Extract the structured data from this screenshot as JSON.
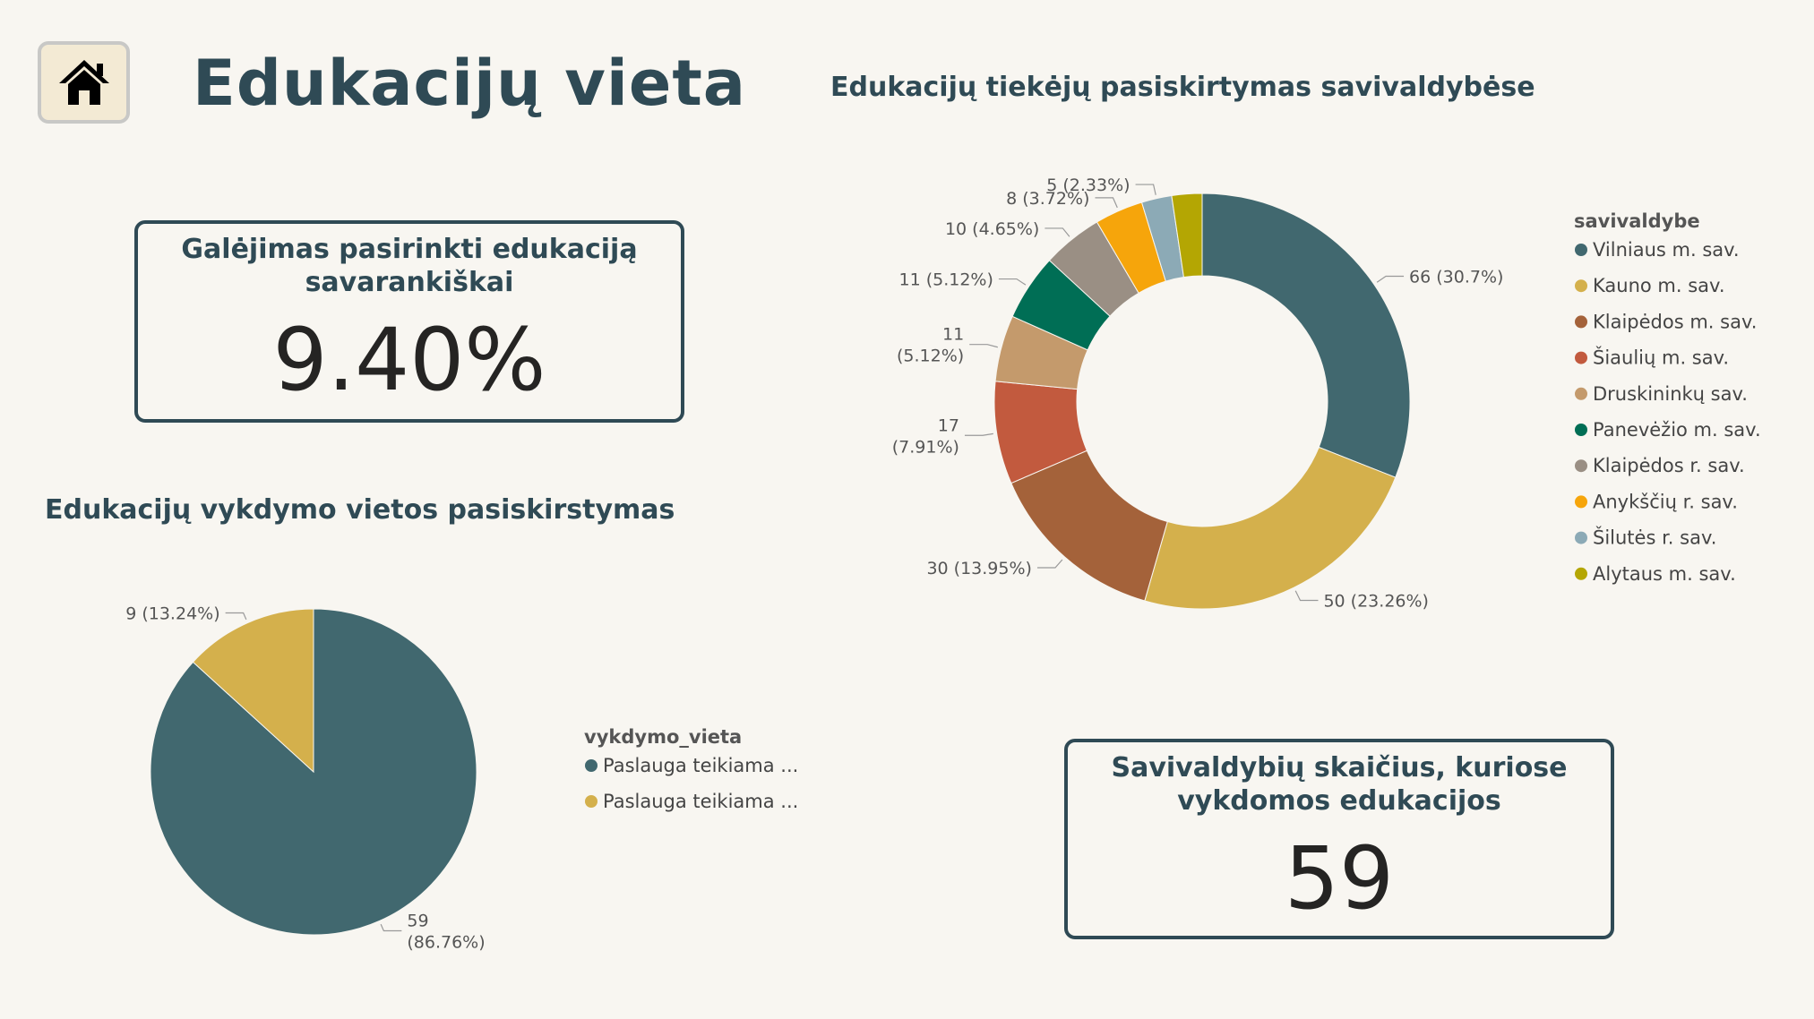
{
  "header": {
    "title": "Edukacijų vieta",
    "home_icon": "home-icon"
  },
  "kpi_self_select": {
    "title": "Galėjimas pasirinkti edukaciją savarankiškai",
    "value": "9.40%"
  },
  "kpi_municipalities": {
    "title": "Savivaldybių skaičius, kuriose vykdomos edukacijos",
    "value": "59"
  },
  "chart_data": [
    {
      "type": "pie",
      "title": "Edukacijų vykdymo vietos pasiskirstymas",
      "legend_title": "vykdymo_vieta",
      "legend_position": "right",
      "categories": [
        "Paslauga teikiama ...",
        "Paslauga teikiama ..."
      ],
      "values": [
        59,
        9
      ],
      "percents": [
        "86.76%",
        "13.24%"
      ],
      "data_labels": [
        "59 (86.76%)",
        "9 (13.24%)"
      ],
      "colors": [
        "#41686f",
        "#d4b04c"
      ]
    },
    {
      "type": "donut",
      "title": "Edukacijų tiekėjų pasiskirtymas savivaldybėse",
      "legend_title": "savivaldybe",
      "legend_position": "right",
      "categories": [
        "Vilniaus m. sav.",
        "Kauno m. sav.",
        "Klaipėdos m. sav.",
        "Šiaulių m. sav.",
        "Druskininkų sav.",
        "Panevėžio m. sav.",
        "Klaipėdos r. sav.",
        "Anykščių r. sav.",
        "Šilutės r. sav.",
        "Alytaus m. sav."
      ],
      "values": [
        66,
        50,
        30,
        17,
        11,
        11,
        10,
        8,
        5,
        5
      ],
      "percents": [
        "30.7%",
        "23.26%",
        "13.95%",
        "7.91%",
        "5.12%",
        "5.12%",
        "4.65%",
        "3.72%",
        "2.33%",
        "2.33%"
      ],
      "data_labels": [
        "66 (30.7%)",
        "50 (23.26%)",
        "30 (13.95%)",
        "17 (7.91%)",
        "11 (5.12%)",
        "11 (5.12%)",
        "10 (4.65%)",
        "8 (3.72%)",
        "5 (2.33%)",
        ""
      ],
      "colors": [
        "#41686f",
        "#d4b04c",
        "#a4623a",
        "#c25a3e",
        "#c49a6c",
        "#006e55",
        "#9a8f84",
        "#f6a50b",
        "#8caab6",
        "#b4a603"
      ]
    }
  ]
}
